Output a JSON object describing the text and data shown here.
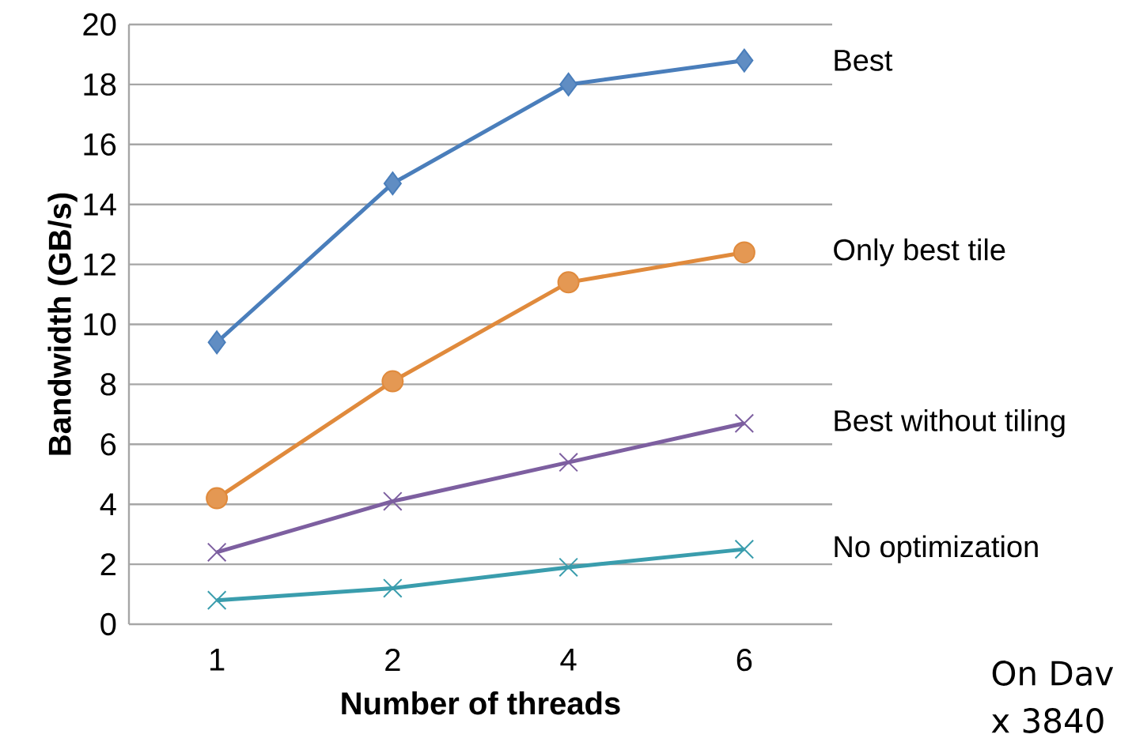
{
  "chart_data": {
    "type": "line",
    "xlabel": "Number of threads",
    "ylabel": "Bandwidth (GB/s)",
    "categories": [
      "1",
      "2",
      "4",
      "6"
    ],
    "series": [
      {
        "name": "Best",
        "color": "#4a7ebb",
        "marker": "diamond",
        "values": [
          9.4,
          14.7,
          18.0,
          18.8
        ]
      },
      {
        "name": "Only best tile",
        "color": "#e08a3c",
        "marker": "circle",
        "values": [
          4.2,
          8.1,
          11.4,
          12.4
        ]
      },
      {
        "name": "Best without tiling",
        "color": "#7d5fa0",
        "marker": "cross",
        "values": [
          2.4,
          4.1,
          5.4,
          6.7
        ]
      },
      {
        "name": "No optimization",
        "color": "#3a9dad",
        "marker": "cross",
        "values": [
          0.8,
          1.2,
          1.9,
          2.5
        ]
      }
    ],
    "ylim": [
      0,
      20
    ],
    "yticks": [
      0,
      2,
      4,
      6,
      8,
      10,
      12,
      14,
      16,
      18,
      20
    ],
    "grid": "y",
    "legend": false,
    "line_style": "solid",
    "annotations": [
      "On Dav",
      "x 3840"
    ]
  }
}
